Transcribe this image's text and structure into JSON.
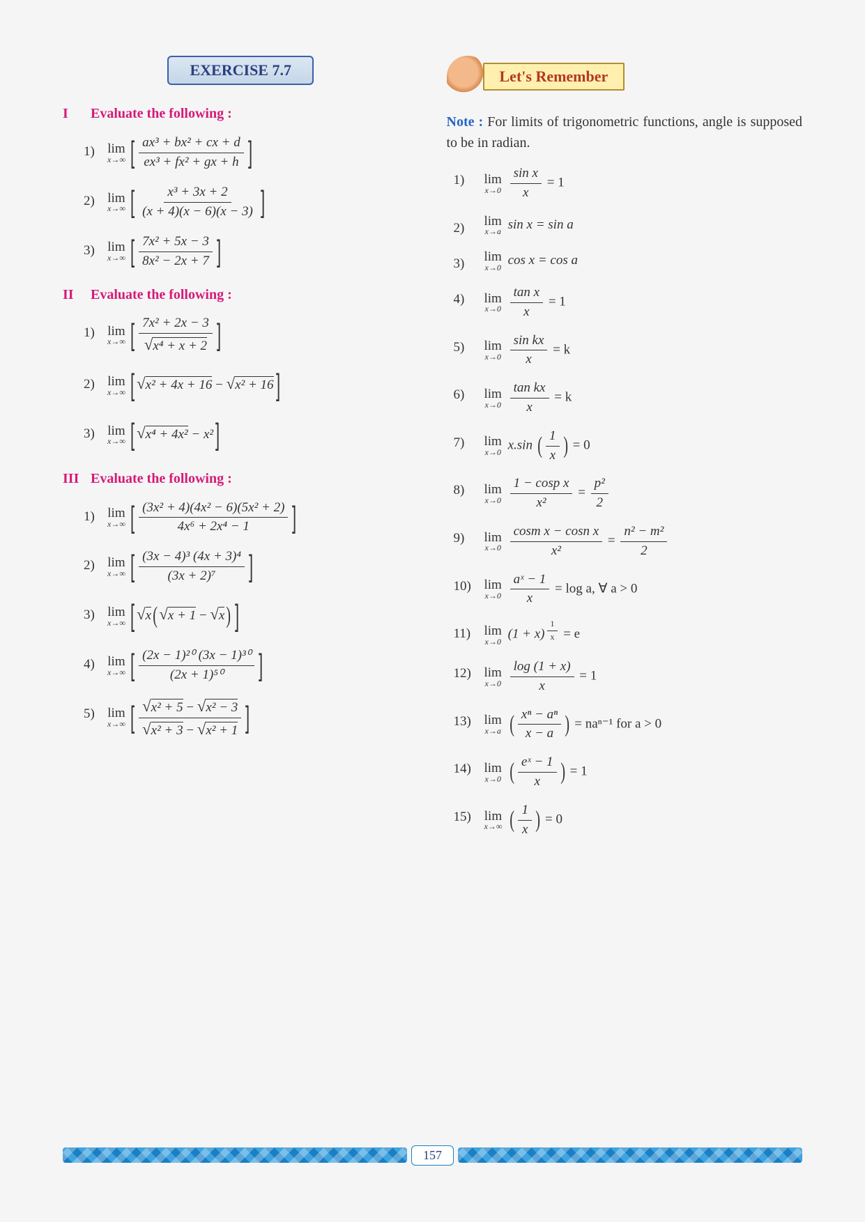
{
  "exercise_label": "EXERCISE 7.7",
  "remember_label": "Let's Remember",
  "note_prefix": "Note :",
  "note_body": "For limits of trigonometric functions, angle is supposed to be in radian.",
  "page_number": "157",
  "colors": {
    "heading": "#d61a78",
    "exercise_border": "#3b5faa",
    "note_blue": "#2566c4",
    "remember_bg": "#fff0b0",
    "remember_text": "#b53820",
    "strip_base": "#1a7fc4"
  },
  "sections": [
    {
      "roman": "I",
      "title": "Evaluate the following :"
    },
    {
      "roman": "II",
      "title": "Evaluate the following :"
    },
    {
      "roman": "III",
      "title": "Evaluate the following :"
    }
  ],
  "left": {
    "I": [
      {
        "n": "1)",
        "num": "ax³ + bx² + cx + d",
        "den": "ex³ + fx² + gx + h",
        "lim": "x→∞"
      },
      {
        "n": "2)",
        "num": "x³ + 3x + 2",
        "den": "(x + 4)(x − 6)(x − 3)",
        "lim": "x→∞"
      },
      {
        "n": "3)",
        "num": "7x² + 5x − 3",
        "den": "8x² − 2x + 7",
        "lim": "x→∞"
      }
    ],
    "II": [
      {
        "n": "1)",
        "num": "7x² + 2x − 3",
        "den_sqrt": "x⁴ + x + 2",
        "lim": "x→∞"
      },
      {
        "n": "2)",
        "plain1_sqrt": "x² + 4x + 16",
        "plain2_sqrt": "x² + 16",
        "op": " − ",
        "lim": "x→∞"
      },
      {
        "n": "3)",
        "plain1_sqrt": "x⁴ + 4x²",
        "plain2": " − x²",
        "lim": "x→∞"
      }
    ],
    "III": [
      {
        "n": "1)",
        "num": "(3x² + 4)(4x² − 6)(5x² + 2)",
        "den": "4x⁶ + 2x⁴ − 1",
        "lim": "x→∞"
      },
      {
        "n": "2)",
        "num": "(3x − 4)³ (4x + 3)⁴",
        "den": "(3x + 2)⁷",
        "lim": "x→∞"
      },
      {
        "n": "3)",
        "outer_sqrt": "x",
        "inner1_sqrt": "x + 1",
        "inner2_sqrt": "x",
        "lim": "x→∞"
      },
      {
        "n": "4)",
        "num": "(2x − 1)²⁰ (3x − 1)³⁰",
        "den": "(2x + 1)⁵⁰",
        "lim": "x→∞"
      },
      {
        "n": "5)",
        "num_sqrt1": "x² + 5",
        "num_sqrt2": "x² − 3",
        "den_sqrt1": "x² + 3",
        "den_sqrt2": "x² + 1",
        "lim": "x→∞"
      }
    ]
  },
  "right": [
    {
      "n": "1)",
      "lim": "x→0",
      "frac_num": "sin x",
      "frac_den": "x",
      "rhs": " = 1"
    },
    {
      "n": "2)",
      "lim": "x→a",
      "body": "sin x = sin a"
    },
    {
      "n": "3)",
      "lim": "x→0",
      "body": "cos x = cos a"
    },
    {
      "n": "4)",
      "lim": "x→0",
      "frac_num": "tan x",
      "frac_den": "x",
      "rhs": " = 1"
    },
    {
      "n": "5)",
      "lim": "x→0",
      "frac_num": "sin kx",
      "frac_den": "x",
      "rhs": " = k"
    },
    {
      "n": "6)",
      "lim": "x→0",
      "frac_num": "tan kx",
      "frac_den": "x",
      "rhs": " = k"
    },
    {
      "n": "7)",
      "lim": "x→0",
      "pre": "x.sin ",
      "paren_num": "1",
      "paren_den": "x",
      "rhs": " = 0"
    },
    {
      "n": "8)",
      "lim": "x→0",
      "frac_num": "1 − cosp x",
      "frac_den": "x²",
      "rhs_frac_num": "p²",
      "rhs_frac_den": "2"
    },
    {
      "n": "9)",
      "lim": "x→0",
      "frac_num": "cosm x − cosn x",
      "frac_den": "x²",
      "rhs_frac_num": "n² − m²",
      "rhs_frac_den": "2"
    },
    {
      "n": "10)",
      "lim": "x→0",
      "frac_num": "aˣ − 1",
      "frac_den": "x",
      "rhs": " = log a,  ∀  a > 0"
    },
    {
      "n": "11)",
      "lim": "x→0",
      "body_pre": "(1 + x)",
      "exp_num": "1",
      "exp_den": "x",
      "rhs": " = e"
    },
    {
      "n": "12)",
      "lim": "x→0",
      "frac_num": "log (1 + x)",
      "frac_den": "x",
      "rhs": " = 1"
    },
    {
      "n": "13)",
      "lim": "x→a",
      "paren_num": "xⁿ − aⁿ",
      "paren_den": "x − a",
      "rhs": " = naⁿ⁻¹ for a > 0"
    },
    {
      "n": "14)",
      "lim": "x→0",
      "paren_num": "eˣ − 1",
      "paren_den": "x",
      "rhs": " = 1"
    },
    {
      "n": "15)",
      "lim": "x→∞",
      "paren_num": "1",
      "paren_den": "x",
      "rhs": " = 0"
    }
  ]
}
